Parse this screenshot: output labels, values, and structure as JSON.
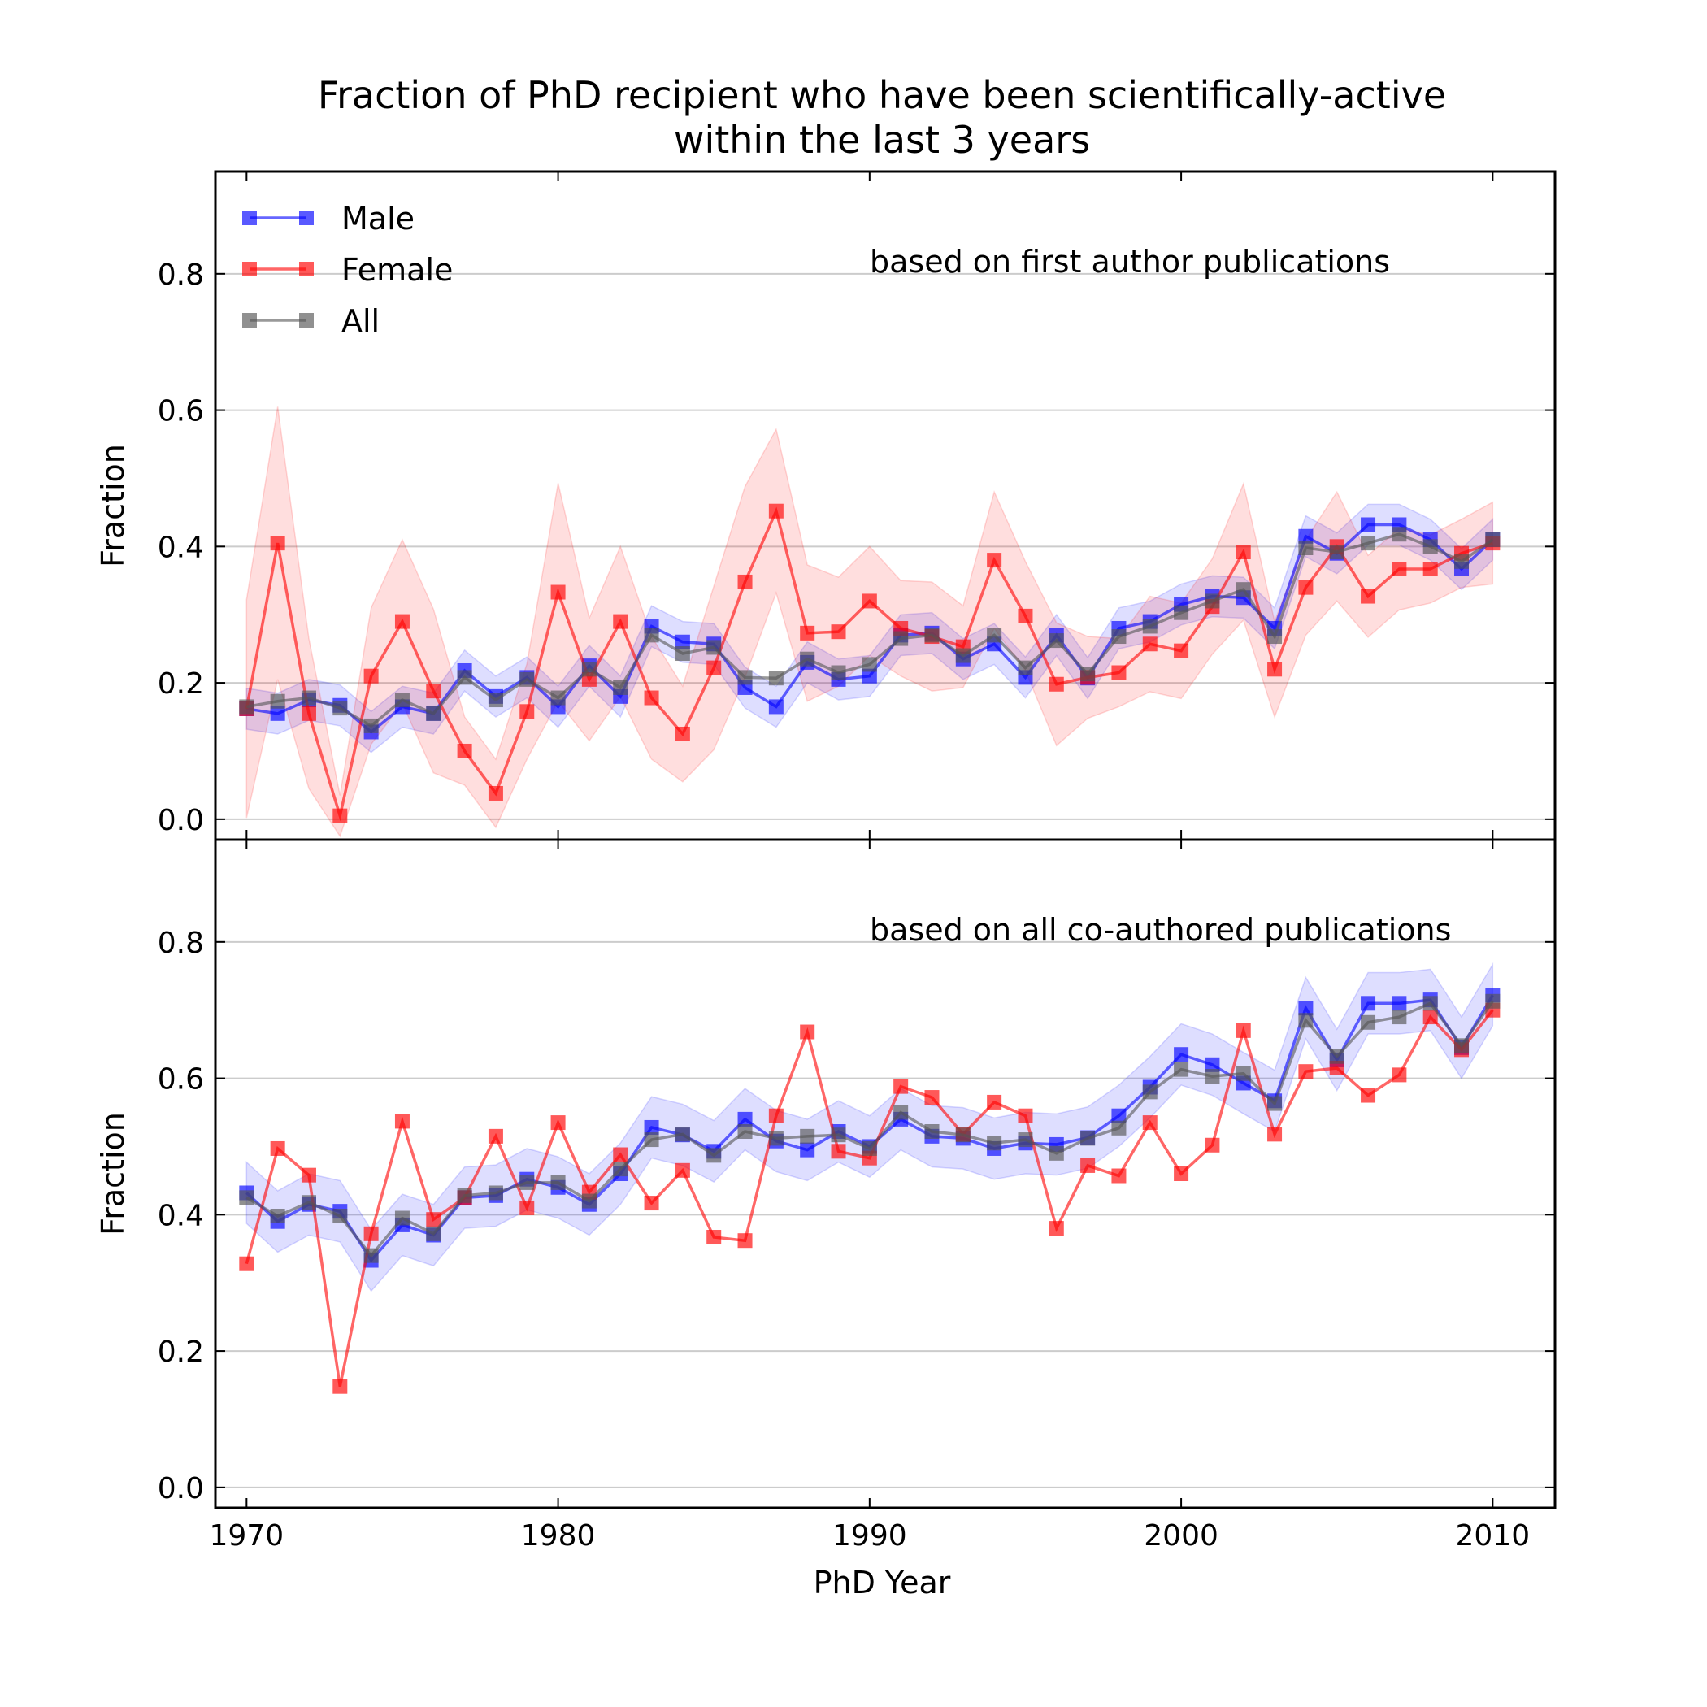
{
  "figure": {
    "title_line1": "Fraction of PhD recipient who have been scientifically-active",
    "title_line2": "within the last 3 years"
  },
  "chart_data": [
    {
      "type": "line",
      "annotation": "based on first author publications",
      "ylabel": "Fraction",
      "xlabel": "",
      "xlim": [
        1969,
        2012
      ],
      "ylim": [
        -0.03,
        0.95
      ],
      "xticks": [
        1970,
        1980,
        1990,
        2000,
        2010
      ],
      "yticks": [
        0.0,
        0.2,
        0.4,
        0.6,
        0.8
      ],
      "ytick_labels": [
        "0.0",
        "0.2",
        "0.4",
        "0.6",
        "0.8"
      ],
      "grid": "horizontal",
      "legend_placement": "top-left",
      "x": [
        1970,
        1971,
        1972,
        1973,
        1974,
        1975,
        1976,
        1977,
        1978,
        1979,
        1980,
        1981,
        1982,
        1983,
        1984,
        1985,
        1986,
        1987,
        1988,
        1989,
        1990,
        1991,
        1992,
        1993,
        1994,
        1995,
        1996,
        1997,
        1998,
        1999,
        2000,
        2001,
        2002,
        2003,
        2004,
        2005,
        2006,
        2007,
        2008,
        2009,
        2010
      ],
      "series": [
        {
          "name": "Male",
          "color": "#0000ff",
          "values": [
            0.162,
            0.155,
            0.175,
            0.167,
            0.128,
            0.165,
            0.155,
            0.218,
            0.18,
            0.208,
            0.165,
            0.225,
            0.18,
            0.283,
            0.26,
            0.257,
            0.193,
            0.165,
            0.23,
            0.205,
            0.21,
            0.27,
            0.273,
            0.235,
            0.257,
            0.208,
            0.27,
            0.207,
            0.28,
            0.29,
            0.315,
            0.327,
            0.325,
            0.28,
            0.415,
            0.39,
            0.432,
            0.432,
            0.41,
            0.367,
            0.41
          ],
          "band_half_width": 0.03
        },
        {
          "name": "Female",
          "color": "#ff0000",
          "values": [
            0.162,
            0.405,
            0.155,
            0.005,
            0.21,
            0.29,
            0.188,
            0.1,
            0.038,
            0.158,
            0.333,
            0.205,
            0.29,
            0.178,
            0.125,
            0.222,
            0.348,
            0.452,
            0.273,
            0.275,
            0.32,
            0.28,
            0.268,
            0.253,
            0.38,
            0.298,
            0.198,
            0.208,
            0.215,
            0.257,
            0.247,
            0.312,
            0.392,
            0.22,
            0.34,
            0.4,
            0.327,
            0.367,
            0.367,
            0.39,
            0.405
          ],
          "band_half_width": [
            0.16,
            0.2,
            0.11,
            0.03,
            0.1,
            0.12,
            0.12,
            0.05,
            0.05,
            0.07,
            0.16,
            0.09,
            0.11,
            0.09,
            0.07,
            0.12,
            0.14,
            0.12,
            0.1,
            0.08,
            0.08,
            0.07,
            0.08,
            0.06,
            0.1,
            0.08,
            0.09,
            0.06,
            0.05,
            0.07,
            0.07,
            0.07,
            0.1,
            0.07,
            0.07,
            0.08,
            0.06,
            0.06,
            0.05,
            0.05,
            0.06
          ]
        },
        {
          "name": "All",
          "color": "#555555",
          "values": [
            0.165,
            0.173,
            0.178,
            0.163,
            0.137,
            0.175,
            0.155,
            0.208,
            0.175,
            0.205,
            0.178,
            0.22,
            0.193,
            0.27,
            0.243,
            0.252,
            0.208,
            0.207,
            0.235,
            0.215,
            0.227,
            0.265,
            0.27,
            0.24,
            0.27,
            0.222,
            0.262,
            0.213,
            0.268,
            0.283,
            0.303,
            0.32,
            0.337,
            0.268,
            0.398,
            0.392,
            0.405,
            0.418,
            0.4,
            0.378,
            0.41
          ],
          "band_half_width": 0.0
        }
      ]
    },
    {
      "type": "line",
      "annotation": "based on all co-authored publications",
      "ylabel": "Fraction",
      "xlabel": "PhD Year",
      "xlim": [
        1969,
        2012
      ],
      "ylim": [
        -0.03,
        0.95
      ],
      "xticks": [
        1970,
        1980,
        1990,
        2000,
        2010
      ],
      "xtick_labels": [
        "1970",
        "1980",
        "1990",
        "2000",
        "2010"
      ],
      "yticks": [
        0.0,
        0.2,
        0.4,
        0.6,
        0.8
      ],
      "ytick_labels": [
        "0.0",
        "0.2",
        "0.4",
        "0.6",
        "0.8"
      ],
      "grid": "horizontal",
      "x": [
        1970,
        1971,
        1972,
        1973,
        1974,
        1975,
        1976,
        1977,
        1978,
        1979,
        1980,
        1981,
        1982,
        1983,
        1984,
        1985,
        1986,
        1987,
        1988,
        1989,
        1990,
        1991,
        1992,
        1993,
        1994,
        1995,
        1996,
        1997,
        1998,
        1999,
        2000,
        2001,
        2002,
        2003,
        2004,
        2005,
        2006,
        2007,
        2008,
        2009,
        2010
      ],
      "series": [
        {
          "name": "Male",
          "color": "#0000ff",
          "values": [
            0.432,
            0.39,
            0.415,
            0.405,
            0.333,
            0.385,
            0.37,
            0.425,
            0.428,
            0.452,
            0.44,
            0.415,
            0.46,
            0.528,
            0.517,
            0.493,
            0.54,
            0.508,
            0.495,
            0.522,
            0.5,
            0.54,
            0.515,
            0.512,
            0.497,
            0.505,
            0.503,
            0.513,
            0.545,
            0.587,
            0.635,
            0.62,
            0.593,
            0.567,
            0.703,
            0.627,
            0.71,
            0.71,
            0.715,
            0.645,
            0.722
          ],
          "band_half_width": 0.045
        },
        {
          "name": "Female",
          "color": "#ff0000",
          "values": [
            0.328,
            0.497,
            0.458,
            0.148,
            0.372,
            0.537,
            0.393,
            0.425,
            0.515,
            0.41,
            0.535,
            0.433,
            0.488,
            0.417,
            0.465,
            0.367,
            0.362,
            0.545,
            0.668,
            0.493,
            0.483,
            0.588,
            0.572,
            0.518,
            0.565,
            0.545,
            0.38,
            0.472,
            0.457,
            0.535,
            0.46,
            0.502,
            0.67,
            0.518,
            0.61,
            0.615,
            0.575,
            0.605,
            0.69,
            0.642,
            0.7
          ]
        },
        {
          "name": "All",
          "color": "#555555",
          "values": [
            0.425,
            0.398,
            0.418,
            0.398,
            0.34,
            0.395,
            0.372,
            0.428,
            0.432,
            0.447,
            0.447,
            0.42,
            0.467,
            0.51,
            0.518,
            0.487,
            0.522,
            0.512,
            0.515,
            0.517,
            0.497,
            0.55,
            0.522,
            0.517,
            0.505,
            0.51,
            0.49,
            0.512,
            0.527,
            0.58,
            0.613,
            0.603,
            0.607,
            0.563,
            0.685,
            0.632,
            0.682,
            0.69,
            0.71,
            0.648,
            0.713
          ]
        }
      ]
    }
  ],
  "legend": {
    "entries": [
      {
        "name": "Male",
        "color": "#0000ff"
      },
      {
        "name": "Female",
        "color": "#ff0000"
      },
      {
        "name": "All",
        "color": "#555555"
      }
    ]
  }
}
